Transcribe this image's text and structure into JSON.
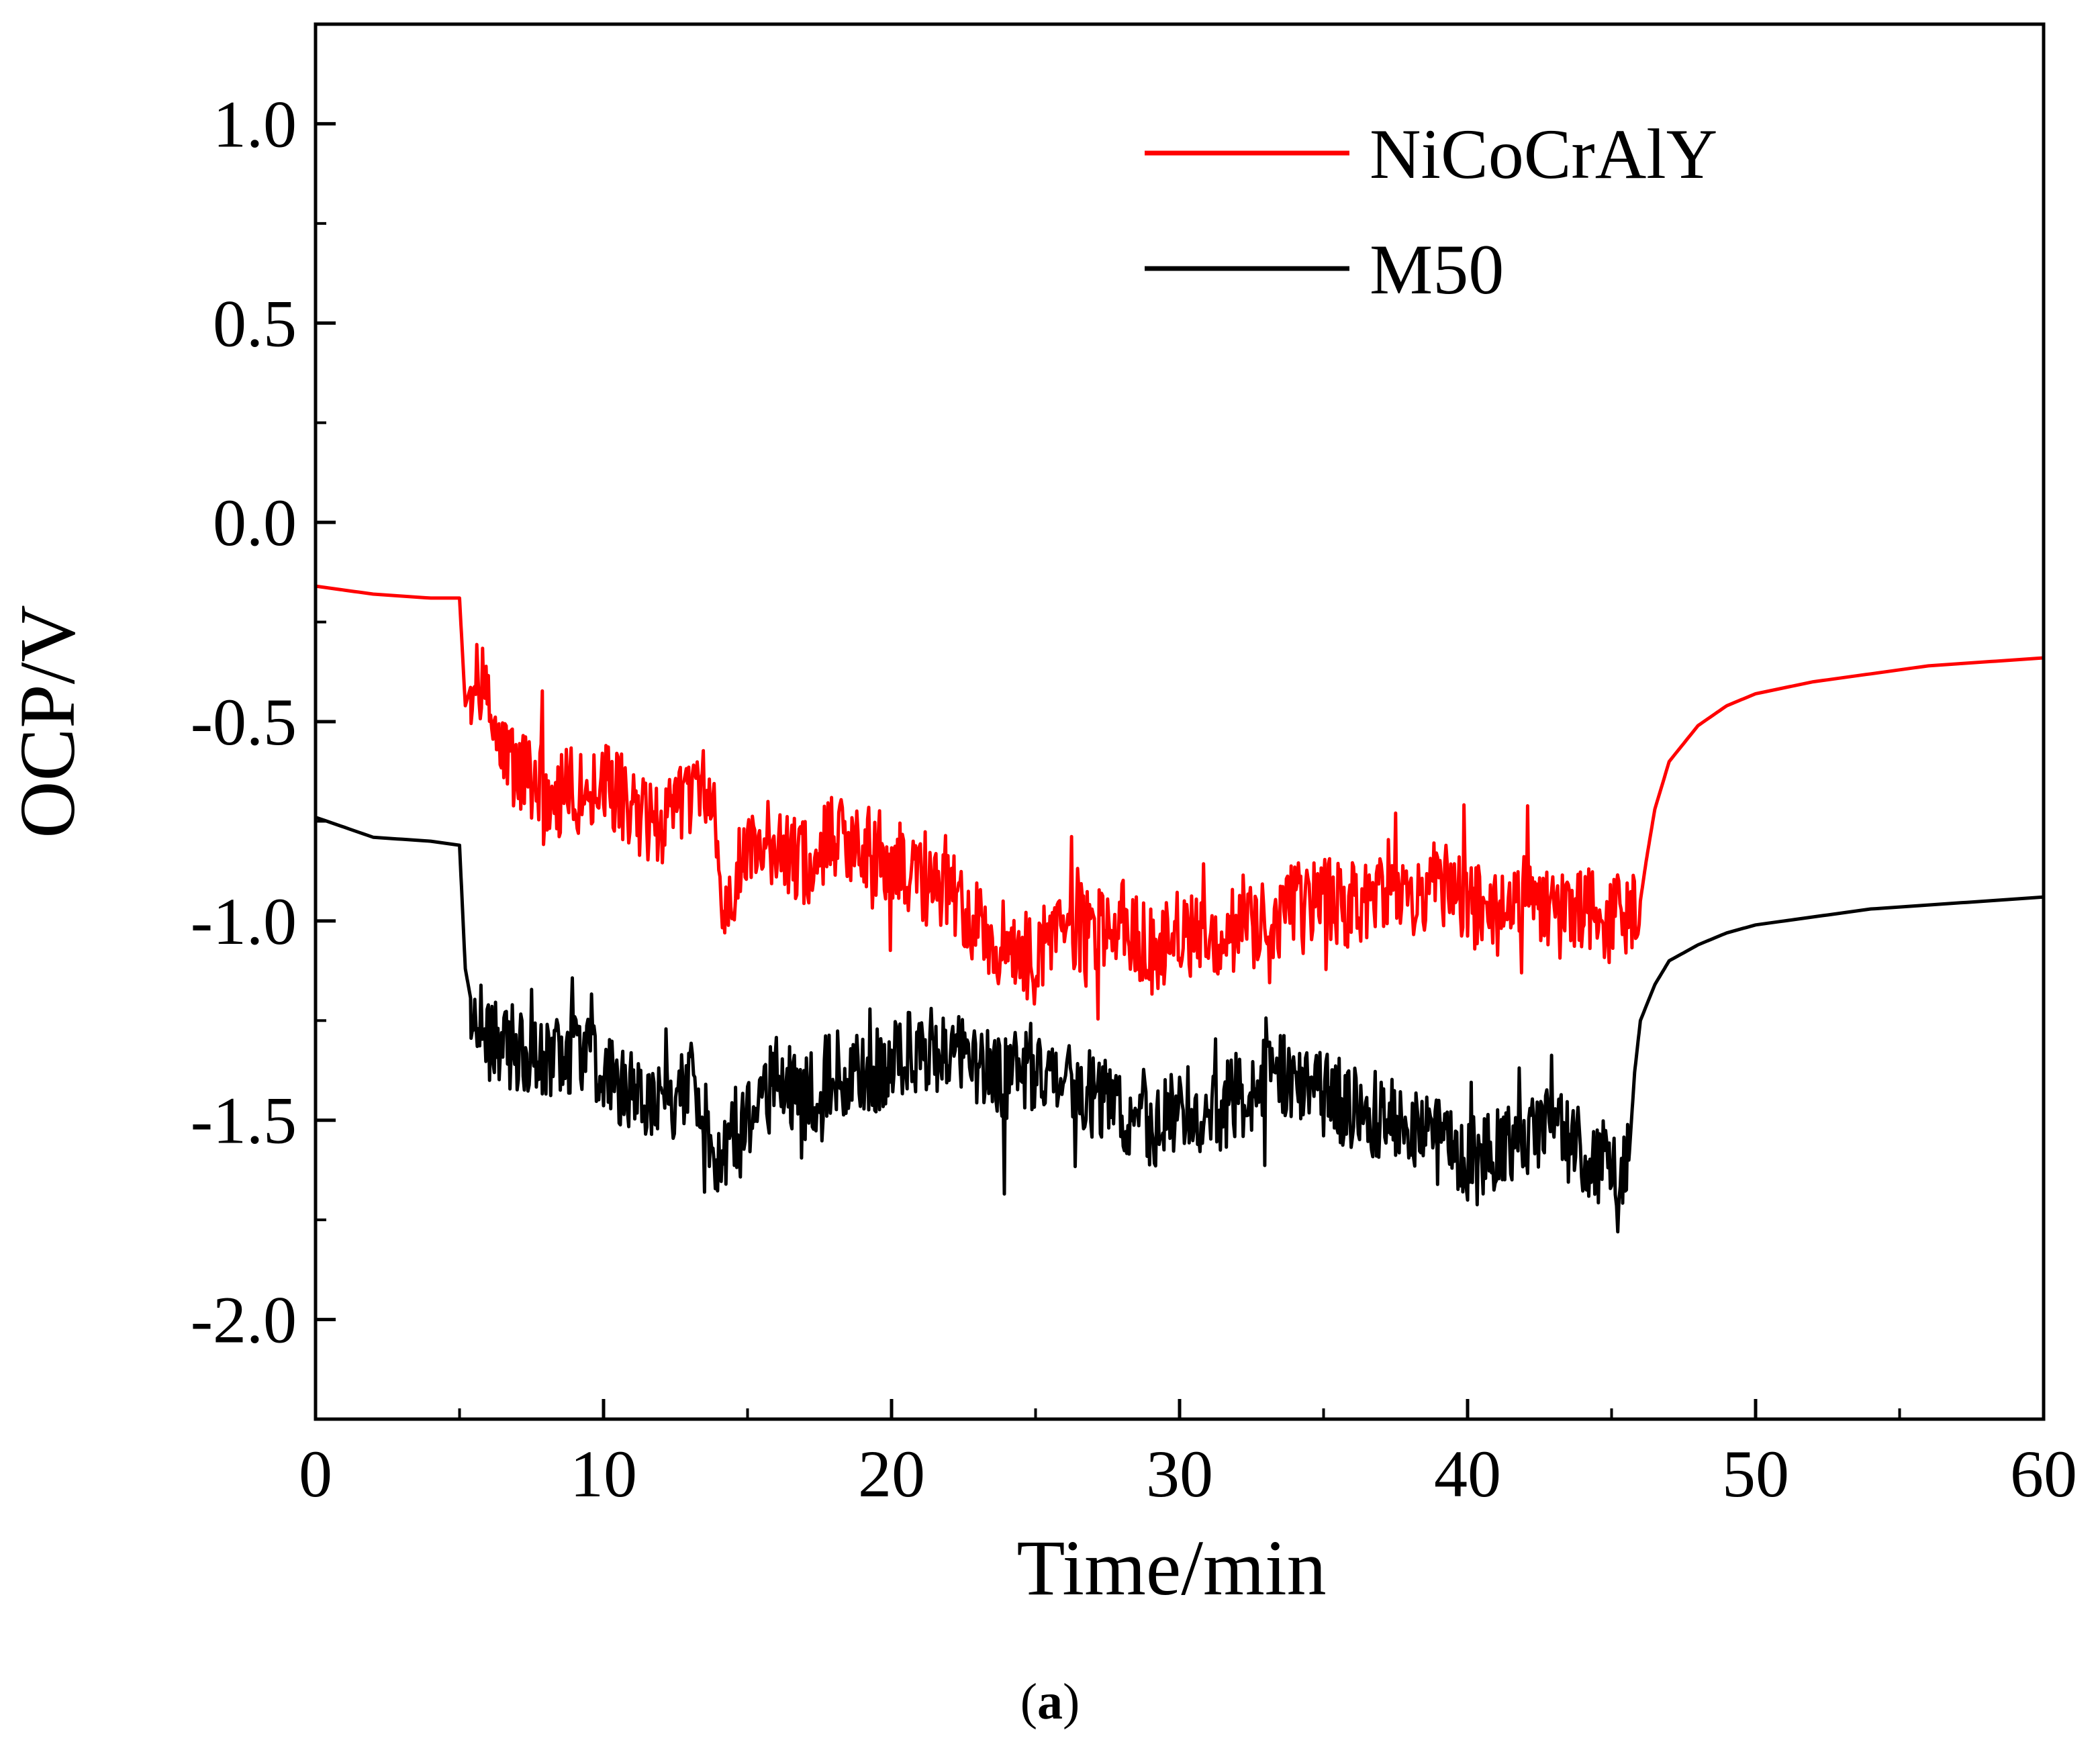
{
  "chart_data": {
    "type": "line",
    "xlabel": "Time/min",
    "ylabel": "OCP/V",
    "xlim": [
      0,
      60
    ],
    "ylim": [
      -2.25,
      1.25
    ],
    "x_ticks": [
      0,
      10,
      20,
      30,
      40,
      50,
      60
    ],
    "x_tick_labels": [
      "0",
      "10",
      "20",
      "30",
      "40",
      "50",
      "60"
    ],
    "y_ticks": [
      1.0,
      0.5,
      0.0,
      -0.5,
      -1.0,
      -1.5,
      -2.0
    ],
    "y_tick_labels": [
      "1.0",
      "0.5",
      "0.0",
      "-0.5",
      "-1.0",
      "-1.5",
      "-2.0"
    ],
    "legend_position": "top-right",
    "series": [
      {
        "name": "NiCoCrAlY",
        "color": "#ff0000",
        "x": [
          0,
          2,
          4,
          5,
          5.2,
          5.4,
          5.8,
          6.2,
          7,
          8,
          9,
          10,
          11,
          12,
          13,
          13.8,
          14,
          14.5,
          15,
          16,
          17,
          18,
          19,
          20,
          21,
          22,
          23,
          24,
          25,
          26,
          27,
          28,
          29,
          30,
          31,
          32,
          33,
          34,
          35,
          36,
          37,
          38,
          39,
          40,
          41,
          42,
          43,
          44,
          45,
          46,
          46.2,
          46.5,
          47,
          48,
          49,
          50,
          52,
          54,
          56,
          58,
          60
        ],
        "y": [
          -0.16,
          -0.18,
          -0.19,
          -0.19,
          -0.46,
          -0.41,
          -0.38,
          -0.52,
          -0.62,
          -0.7,
          -0.66,
          -0.64,
          -0.72,
          -0.76,
          -0.7,
          -0.66,
          -0.95,
          -0.92,
          -0.82,
          -0.8,
          -0.86,
          -0.8,
          -0.82,
          -0.84,
          -0.9,
          -0.92,
          -1.02,
          -1.06,
          -1.1,
          -1.0,
          -1.04,
          -1.0,
          -1.08,
          -1.02,
          -1.06,
          -0.98,
          -1.0,
          -0.96,
          -0.94,
          -0.96,
          -0.92,
          -0.94,
          -0.9,
          -0.96,
          -0.98,
          -0.94,
          -1.0,
          -0.96,
          -1.0,
          -0.95,
          -0.85,
          -0.72,
          -0.6,
          -0.51,
          -0.46,
          -0.43,
          -0.4,
          -0.38,
          -0.36,
          -0.35,
          -0.34
        ]
      },
      {
        "name": "M50",
        "color": "#000000",
        "x": [
          0,
          2,
          4,
          5,
          5.2,
          5.4,
          6,
          7,
          8,
          9,
          10,
          11,
          12,
          13,
          13.8,
          14,
          15,
          16,
          17,
          18,
          19,
          20,
          21,
          22,
          23,
          24,
          25,
          26,
          27,
          28,
          29,
          30,
          31,
          32,
          33,
          34,
          35,
          36,
          37,
          38,
          39,
          40,
          41,
          42,
          43,
          44,
          45,
          45.6,
          45.8,
          46,
          46.5,
          47,
          48,
          49,
          50,
          52,
          54,
          56,
          58,
          60
        ],
        "y": [
          -0.74,
          -0.79,
          -0.8,
          -0.81,
          -1.12,
          -1.2,
          -1.3,
          -1.32,
          -1.34,
          -1.34,
          -1.36,
          -1.44,
          -1.48,
          -1.4,
          -1.55,
          -1.6,
          -1.52,
          -1.4,
          -1.44,
          -1.38,
          -1.4,
          -1.36,
          -1.32,
          -1.34,
          -1.36,
          -1.4,
          -1.36,
          -1.4,
          -1.44,
          -1.48,
          -1.52,
          -1.46,
          -1.5,
          -1.44,
          -1.4,
          -1.38,
          -1.44,
          -1.46,
          -1.5,
          -1.52,
          -1.56,
          -1.6,
          -1.58,
          -1.56,
          -1.52,
          -1.58,
          -1.62,
          -1.6,
          -1.38,
          -1.25,
          -1.16,
          -1.1,
          -1.06,
          -1.03,
          -1.01,
          -0.99,
          -0.97,
          -0.96,
          -0.95,
          -0.94
        ]
      }
    ]
  },
  "caption": {
    "open": "(",
    "label": "a",
    "close": ")"
  }
}
